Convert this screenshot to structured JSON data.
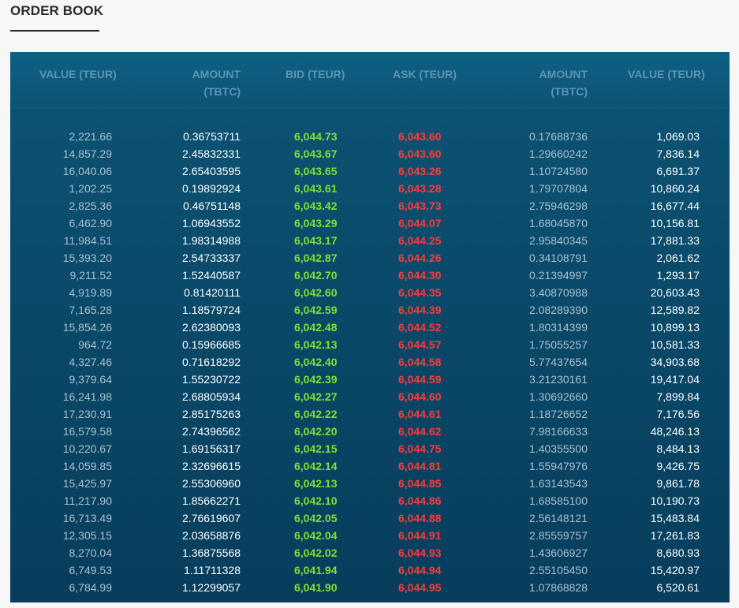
{
  "title": "ORDER BOOK",
  "columns": {
    "value_left": "VALUE (TEUR)",
    "amount_left_line1": "AMOUNT",
    "amount_left_line2": "(TBTC)",
    "bid": "BID (TEUR)",
    "ask": "ASK (TEUR)",
    "amount_right_line1": "AMOUNT",
    "amount_right_line2": "(TBTC)",
    "value_right": "VALUE (TEUR)"
  },
  "colors": {
    "bid": "#7ee030",
    "ask": "#ff3a3a",
    "panel": "#0a4a6a"
  },
  "rows": [
    {
      "bid_value": "2,221.66",
      "bid_amount": "0.36753711",
      "bid": "6,044.73",
      "ask": "6,043.60",
      "ask_amount": "0.17688736",
      "ask_value": "1,069.03"
    },
    {
      "bid_value": "14,857.29",
      "bid_amount": "2.45832331",
      "bid": "6,043.67",
      "ask": "6,043.60",
      "ask_amount": "1.29660242",
      "ask_value": "7,836.14"
    },
    {
      "bid_value": "16,040.06",
      "bid_amount": "2.65403595",
      "bid": "6,043.65",
      "ask": "6,043.26",
      "ask_amount": "1.10724580",
      "ask_value": "6,691.37"
    },
    {
      "bid_value": "1,202.25",
      "bid_amount": "0.19892924",
      "bid": "6,043.61",
      "ask": "6,043.28",
      "ask_amount": "1.79707804",
      "ask_value": "10,860.24"
    },
    {
      "bid_value": "2,825.36",
      "bid_amount": "0.46751148",
      "bid": "6,043.42",
      "ask": "6,043.73",
      "ask_amount": "2.75946298",
      "ask_value": "16,677.44"
    },
    {
      "bid_value": "6,462.90",
      "bid_amount": "1.06943552",
      "bid": "6,043.29",
      "ask": "6,044.07",
      "ask_amount": "1.68045870",
      "ask_value": "10,156.81"
    },
    {
      "bid_value": "11,984.51",
      "bid_amount": "1.98314988",
      "bid": "6,043.17",
      "ask": "6,044.25",
      "ask_amount": "2.95840345",
      "ask_value": "17,881.33"
    },
    {
      "bid_value": "15,393.20",
      "bid_amount": "2.54733337",
      "bid": "6,042.87",
      "ask": "6,044.26",
      "ask_amount": "0.34108791",
      "ask_value": "2,061.62"
    },
    {
      "bid_value": "9,211.52",
      "bid_amount": "1.52440587",
      "bid": "6,042.70",
      "ask": "6,044.30",
      "ask_amount": "0.21394997",
      "ask_value": "1,293.17"
    },
    {
      "bid_value": "4,919.89",
      "bid_amount": "0.81420111",
      "bid": "6,042.60",
      "ask": "6,044.35",
      "ask_amount": "3.40870988",
      "ask_value": "20,603.43"
    },
    {
      "bid_value": "7,165.28",
      "bid_amount": "1.18579724",
      "bid": "6,042.59",
      "ask": "6,044.39",
      "ask_amount": "2.08289390",
      "ask_value": "12,589.82"
    },
    {
      "bid_value": "15,854.26",
      "bid_amount": "2.62380093",
      "bid": "6,042.48",
      "ask": "6,044.52",
      "ask_amount": "1.80314399",
      "ask_value": "10,899.13"
    },
    {
      "bid_value": "964.72",
      "bid_amount": "0.15966685",
      "bid": "6,042.13",
      "ask": "6,044.57",
      "ask_amount": "1.75055257",
      "ask_value": "10,581.33"
    },
    {
      "bid_value": "4,327.46",
      "bid_amount": "0.71618292",
      "bid": "6,042.40",
      "ask": "6,044.58",
      "ask_amount": "5.77437654",
      "ask_value": "34,903.68"
    },
    {
      "bid_value": "9,379.64",
      "bid_amount": "1.55230722",
      "bid": "6,042.39",
      "ask": "6,044.59",
      "ask_amount": "3.21230161",
      "ask_value": "19,417.04"
    },
    {
      "bid_value": "16,241.98",
      "bid_amount": "2.68805934",
      "bid": "6,042.27",
      "ask": "6,044.60",
      "ask_amount": "1.30692660",
      "ask_value": "7,899.84"
    },
    {
      "bid_value": "17,230.91",
      "bid_amount": "2.85175263",
      "bid": "6,042.22",
      "ask": "6,044.61",
      "ask_amount": "1.18726652",
      "ask_value": "7,176.56"
    },
    {
      "bid_value": "16,579.58",
      "bid_amount": "2.74396562",
      "bid": "6,042.20",
      "ask": "6,044.62",
      "ask_amount": "7.98166633",
      "ask_value": "48,246.13"
    },
    {
      "bid_value": "10,220.67",
      "bid_amount": "1.69156317",
      "bid": "6,042.15",
      "ask": "6,044.75",
      "ask_amount": "1.40355500",
      "ask_value": "8,484.13"
    },
    {
      "bid_value": "14,059.85",
      "bid_amount": "2.32696615",
      "bid": "6,042.14",
      "ask": "6,044.81",
      "ask_amount": "1.55947976",
      "ask_value": "9,426.75"
    },
    {
      "bid_value": "15,425.97",
      "bid_amount": "2.55306960",
      "bid": "6,042.13",
      "ask": "6,044.85",
      "ask_amount": "1.63143543",
      "ask_value": "9,861.78"
    },
    {
      "bid_value": "11,217.90",
      "bid_amount": "1.85662271",
      "bid": "6,042.10",
      "ask": "6,044.86",
      "ask_amount": "1.68585100",
      "ask_value": "10,190.73"
    },
    {
      "bid_value": "16,713.49",
      "bid_amount": "2.76619607",
      "bid": "6,042.05",
      "ask": "6,044.88",
      "ask_amount": "2.56148121",
      "ask_value": "15,483.84"
    },
    {
      "bid_value": "12,305.15",
      "bid_amount": "2.03658876",
      "bid": "6,042.04",
      "ask": "6,044.91",
      "ask_amount": "2.85559757",
      "ask_value": "17,261.83"
    },
    {
      "bid_value": "8,270.04",
      "bid_amount": "1.36875568",
      "bid": "6,042.02",
      "ask": "6,044.93",
      "ask_amount": "1.43606927",
      "ask_value": "8,680.93"
    },
    {
      "bid_value": "6,749.53",
      "bid_amount": "1.11711328",
      "bid": "6,041.94",
      "ask": "6,044.94",
      "ask_amount": "2.55105450",
      "ask_value": "15,420.97"
    },
    {
      "bid_value": "6,784.99",
      "bid_amount": "1.12299057",
      "bid": "6,041.90",
      "ask": "6,044.95",
      "ask_amount": "1.07868828",
      "ask_value": "6,520.61"
    }
  ]
}
